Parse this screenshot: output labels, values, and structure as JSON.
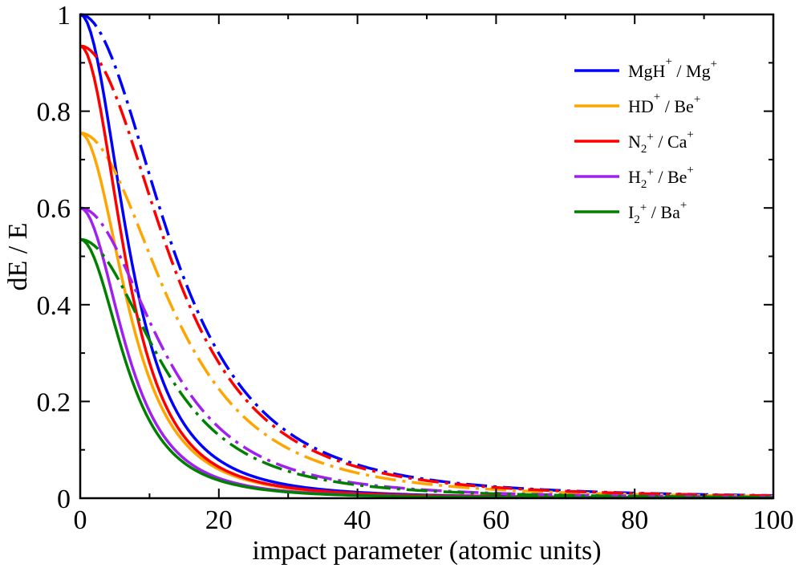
{
  "chart_data": {
    "type": "line",
    "title": "",
    "xlabel": "impact parameter (atomic units)",
    "ylabel": "dE / E",
    "xlim": [
      0,
      100
    ],
    "ylim": [
      0,
      1
    ],
    "xticks": [
      0,
      20,
      40,
      60,
      80,
      100
    ],
    "yticks": [
      0,
      0.2,
      0.4,
      0.6,
      0.8,
      1
    ],
    "xtick_labels": [
      "0",
      "20",
      "40",
      "60",
      "80",
      "100"
    ],
    "ytick_labels": [
      "0",
      "0.2",
      "0.4",
      "0.6",
      "0.8",
      "1"
    ],
    "legend_position": "top-right",
    "line_styles": {
      "solid": "solid",
      "dashdot": "dash-dot"
    },
    "series": [
      {
        "name": "MgH+ / Mg+",
        "color": "#0000ff",
        "legend": {
          "a": "MgH",
          "a_sup": "+",
          "b": " / Mg",
          "b_sup": "+"
        },
        "solid": {
          "amp": 1.0,
          "width": 9.5
        },
        "dashdot": {
          "amp": 1.0,
          "width": 18
        }
      },
      {
        "name": "HD+ / Be+",
        "color": "#ffa500",
        "legend": {
          "a": "HD",
          "a_sup": "+",
          "b": " / Be",
          "b_sup": "+"
        },
        "solid": {
          "amp": 0.755,
          "width": 9.5
        },
        "dashdot": {
          "amp": 0.755,
          "width": 18
        }
      },
      {
        "name": "N2+ / Ca+",
        "color": "#ff0000",
        "legend": {
          "a": "N",
          "a_sub": "2",
          "a_sup": "+",
          "b": " / Ca",
          "b_sup": "+"
        },
        "solid": {
          "amp": 0.935,
          "width": 9.0
        },
        "dashdot": {
          "amp": 0.935,
          "width": 18
        }
      },
      {
        "name": "H2+ / Be+",
        "color": "#a020f0",
        "legend": {
          "a": "H",
          "a_sub": "2",
          "a_sup": "+",
          "b": " / Be",
          "b_sup": "+"
        },
        "solid": {
          "amp": 0.6,
          "width": 9.0
        },
        "dashdot": {
          "amp": 0.6,
          "width": 16
        }
      },
      {
        "name": "I2+ / Ba+",
        "color": "#008000",
        "legend": {
          "a": "I",
          "a_sub": "2",
          "a_sup": "+",
          "b": " / Ba",
          "b_sup": "+"
        },
        "solid": {
          "amp": 0.535,
          "width": 9.0
        },
        "dashdot": {
          "amp": 0.535,
          "width": 16
        }
      }
    ]
  }
}
